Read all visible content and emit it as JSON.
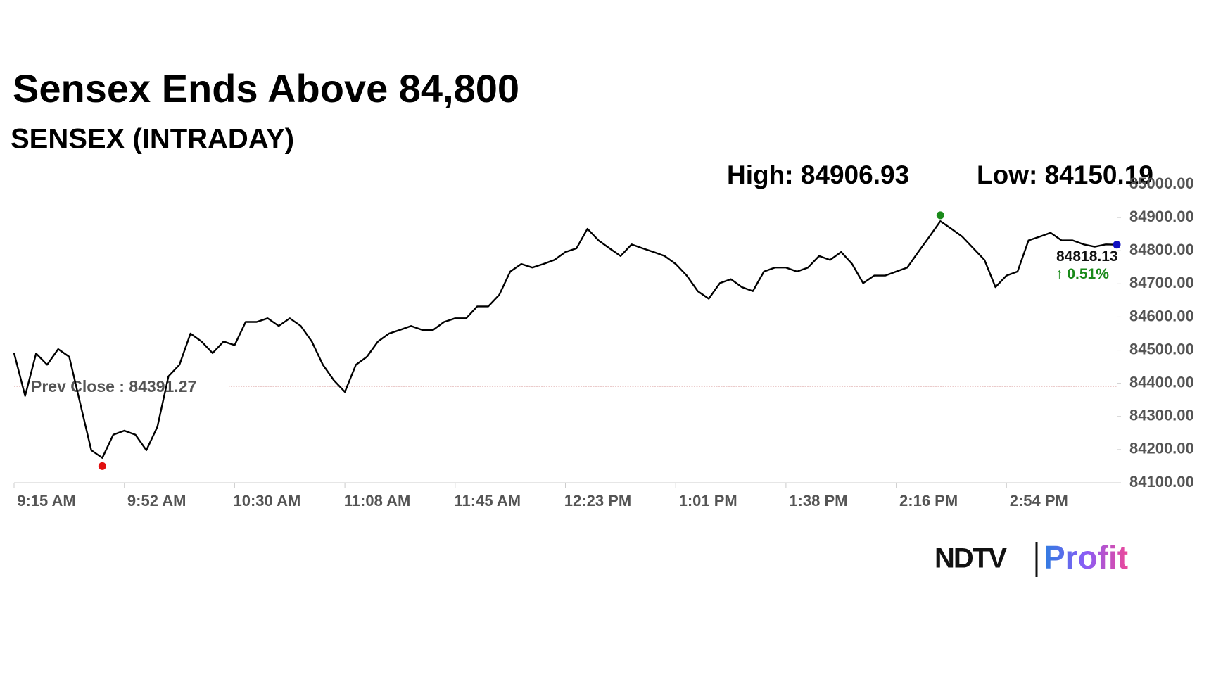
{
  "chart_data": {
    "type": "line",
    "title": "Sensex Ends Above 84,800",
    "subtitle": "SENSEX (INTRADAY)",
    "high_label": "High:",
    "high": 84906.93,
    "low_label": "Low:",
    "low": 84150.19,
    "prev_close_label": "Prev Close :",
    "prev_close": 84391.27,
    "change_label": "↑ 0.51%",
    "categories": [
      "9:15 AM",
      null,
      null,
      null,
      null,
      null,
      null,
      null,
      null,
      null,
      "9:52 AM",
      null,
      null,
      null,
      null,
      null,
      null,
      null,
      null,
      null,
      "10:30 AM",
      null,
      null,
      null,
      null,
      null,
      null,
      null,
      null,
      null,
      "11:08 AM",
      null,
      null,
      null,
      null,
      null,
      null,
      null,
      null,
      null,
      "11:45 AM",
      null,
      null,
      null,
      null,
      null,
      null,
      null,
      null,
      null,
      "12:23 PM",
      null,
      null,
      null,
      null,
      null,
      null,
      null,
      null,
      null,
      "1:01 PM",
      null,
      null,
      null,
      null,
      null,
      null,
      null,
      null,
      null,
      "1:38 PM",
      null,
      null,
      null,
      null,
      null,
      null,
      null,
      null,
      null,
      "2:16 PM",
      null,
      null,
      null,
      null,
      null,
      null,
      null,
      null,
      null,
      "2:54 PM",
      null,
      null,
      null,
      null,
      null,
      null,
      null,
      null,
      null,
      null
    ],
    "series": [
      {
        "name": "SENSEX",
        "color": "#000000",
        "values": [
          84491,
          84362,
          84490,
          84456,
          84503,
          84480,
          84339,
          84198,
          84175,
          84245,
          84257,
          84245,
          84198,
          84269,
          84421,
          84456,
          84550,
          84526,
          84491,
          84526,
          84515,
          84585,
          84585,
          84596,
          84573,
          84596,
          84573,
          84526,
          84456,
          84409,
          84374,
          84456,
          84480,
          84526,
          84550,
          84561,
          84573,
          84561,
          84561,
          84585,
          84596,
          84596,
          84632,
          84632,
          84667,
          84737,
          84760,
          84749,
          84760,
          84772,
          84796,
          84807,
          84866,
          84831,
          84807,
          84784,
          84819,
          84807,
          84796,
          84784,
          84760,
          84725,
          84678,
          84655,
          84702,
          84714,
          84690,
          84678,
          84737,
          84749,
          84749,
          84737,
          84749,
          84784,
          84772,
          84796,
          84760,
          84702,
          84725,
          84725,
          84737,
          84749,
          84796,
          84842,
          84889,
          84866,
          84842,
          84807,
          84772,
          84690,
          84725,
          84737,
          84831,
          84842,
          84854,
          84831,
          84831,
          84819,
          84812,
          84819,
          84818.13
        ]
      }
    ],
    "ylim": [
      84100,
      85000
    ],
    "yticks": [
      {
        "value": 84100,
        "label": "84100.00"
      },
      {
        "value": 84200,
        "label": "84200.00"
      },
      {
        "value": 84300,
        "label": "84300.00"
      },
      {
        "value": 84400,
        "label": "84400.00"
      },
      {
        "value": 84500,
        "label": "84500.00"
      },
      {
        "value": 84600,
        "label": "84600.00"
      },
      {
        "value": 84700,
        "label": "84700.00"
      },
      {
        "value": 84800,
        "label": "84800.00"
      },
      {
        "value": 84900,
        "label": "84900.00"
      },
      {
        "value": 85000,
        "label": "85000.00"
      }
    ],
    "logo": {
      "brand": "NDTV",
      "product": "Profit"
    }
  }
}
